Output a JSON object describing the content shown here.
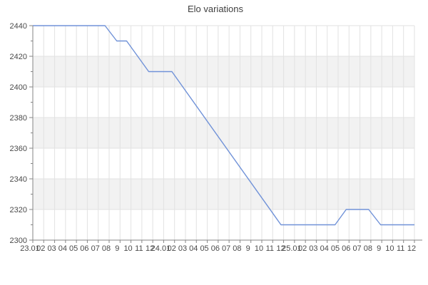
{
  "chart_data": {
    "type": "line",
    "title": "Elo variations",
    "x_tick_labels": [
      "23.01",
      "02",
      "03",
      "04",
      "05",
      "06",
      "07",
      "08",
      "9",
      "10",
      "11",
      "12",
      "24.01",
      "02",
      "03",
      "04",
      "05",
      "06",
      "07",
      "08",
      "9",
      "10",
      "11",
      "12",
      "25.01",
      "02",
      "03",
      "04",
      "05",
      "06",
      "07",
      "08",
      "9",
      "10",
      "11",
      "12"
    ],
    "y_tick_values": [
      2440,
      2420,
      2400,
      2380,
      2360,
      2340,
      2320,
      2300
    ],
    "y_minor_step": 10,
    "xlim": [
      0,
      35
    ],
    "ylim": [
      2300,
      2440
    ],
    "grid": true,
    "legend": "none",
    "shaded_bands": [
      [
        2400,
        2420
      ],
      [
        2360,
        2380
      ],
      [
        2320,
        2340
      ]
    ],
    "series": [
      {
        "name": "Elo",
        "color": "#7092d8",
        "points": [
          [
            0,
            2440
          ],
          [
            6.62,
            2440
          ],
          [
            7.7,
            2430
          ],
          [
            8.6,
            2430
          ],
          [
            10.63,
            2410
          ],
          [
            12.76,
            2410
          ],
          [
            22.76,
            2310
          ],
          [
            27.72,
            2310
          ],
          [
            28.74,
            2320
          ],
          [
            30.8,
            2320
          ],
          [
            31.9,
            2310
          ],
          [
            35,
            2310
          ]
        ]
      }
    ],
    "colors": {
      "background": "#ffffff",
      "band": "#f2f2f2",
      "grid": "#e2e2e2",
      "axis": "#858585",
      "tick_text": "#4a4a4a",
      "title_text": "#3f3f3f"
    }
  }
}
